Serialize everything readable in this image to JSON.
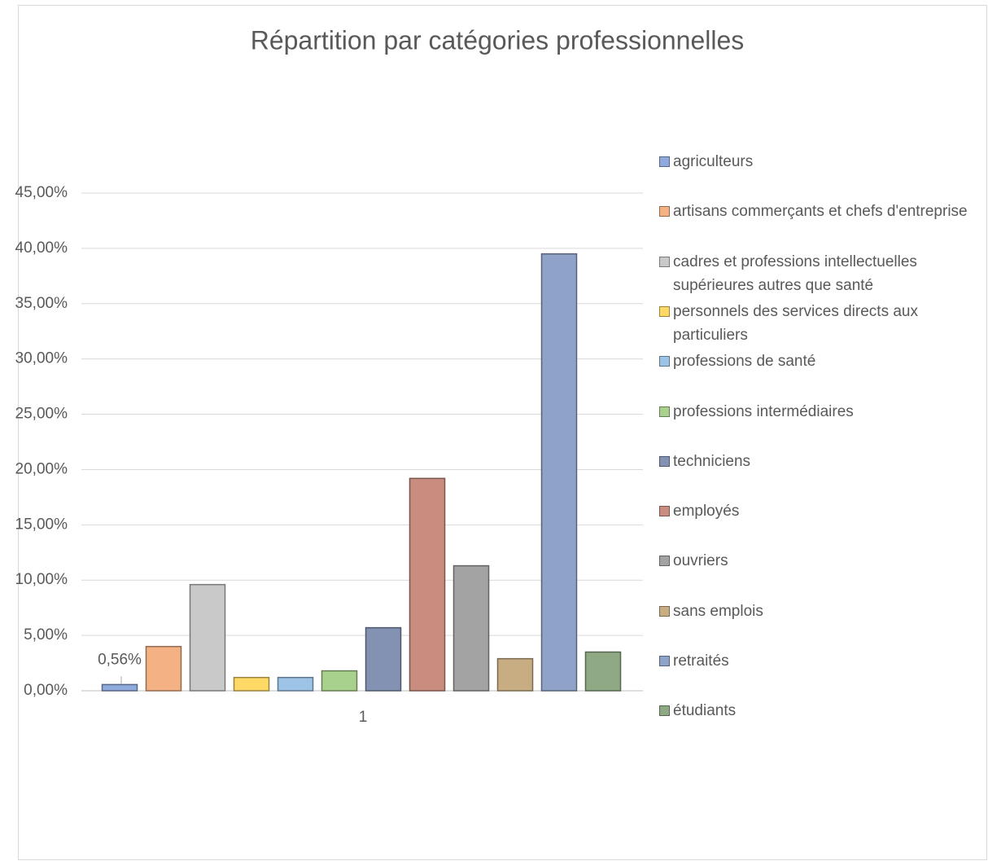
{
  "chart_data": {
    "type": "bar",
    "title": "Répartition par catégories professionnelles",
    "categories": [
      "1"
    ],
    "series": [
      {
        "name": "agriculteurs",
        "color": "#8faadc",
        "values": [
          0.56
        ],
        "value_labels": [
          "0,56%"
        ]
      },
      {
        "name": "artisans commerçants et chefs d'entreprise",
        "color": "#f4b183",
        "values": [
          4.0
        ]
      },
      {
        "name": "cadres et professions intellectuelles supérieures autres que santé",
        "color": "#c9c9c9",
        "values": [
          9.6
        ]
      },
      {
        "name": "personnels des services directs aux particuliers",
        "color": "#ffd966",
        "values": [
          1.2
        ]
      },
      {
        "name": "professions de santé",
        "color": "#9dc3e6",
        "values": [
          1.2
        ]
      },
      {
        "name": "professions intermédiaires",
        "color": "#a9d18e",
        "values": [
          1.8
        ]
      },
      {
        "name": "techniciens",
        "color": "#8391b3",
        "values": [
          5.7
        ]
      },
      {
        "name": "employés",
        "color": "#c98d7f",
        "values": [
          19.2
        ]
      },
      {
        "name": "ouvriers",
        "color": "#a3a3a3",
        "values": [
          11.3
        ]
      },
      {
        "name": "sans emplois",
        "color": "#c8ad83",
        "values": [
          2.9
        ]
      },
      {
        "name": "retraités",
        "color": "#8ea3c7",
        "values": [
          39.5
        ]
      },
      {
        "name": "étudiants",
        "color": "#8fa985",
        "values": [
          3.5
        ]
      }
    ],
    "ylim": [
      0,
      45
    ],
    "yticks": [
      {
        "value": 0,
        "label": "0,00%"
      },
      {
        "value": 5,
        "label": "5,00%"
      },
      {
        "value": 10,
        "label": "10,00%"
      },
      {
        "value": 15,
        "label": "15,00%"
      },
      {
        "value": 20,
        "label": "20,00%"
      },
      {
        "value": 25,
        "label": "25,00%"
      },
      {
        "value": 30,
        "label": "30,00%"
      },
      {
        "value": 35,
        "label": "35,00%"
      },
      {
        "value": 40,
        "label": "40,00%"
      },
      {
        "value": 45,
        "label": "45,00%"
      }
    ],
    "grid": true,
    "legend": "right"
  }
}
